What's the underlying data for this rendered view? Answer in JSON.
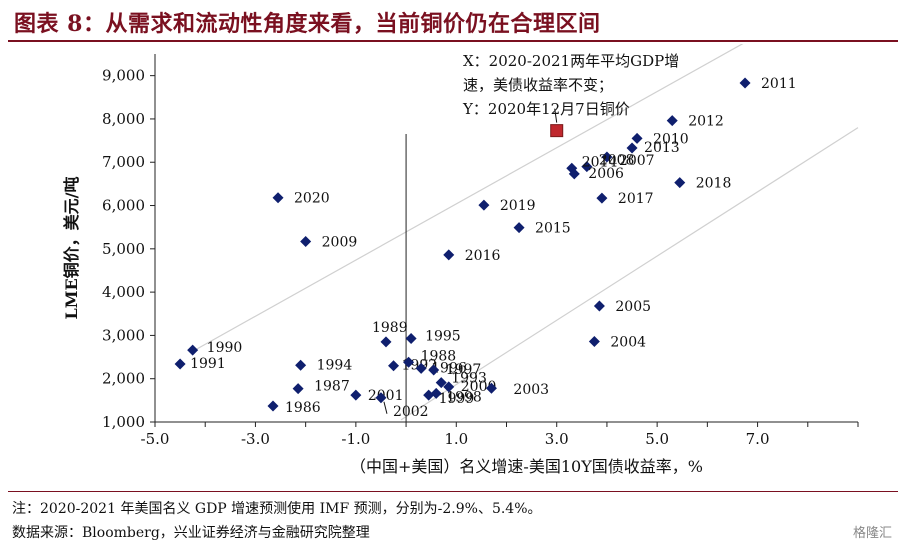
{
  "title": "图表 8：从需求和流动性角度来看，当前铜价仍在合理区间",
  "notes": {
    "line1": "注：2020-2021 年美国名义 GDP 增速预测使用 IMF 预测，分别为-2.9%、5.4%。",
    "line2": "数据来源：Bloomberg，兴业证券经济与金融研究院整理"
  },
  "watermark": "格隆汇",
  "annotation": {
    "lines": [
      "X：2020-2021两年平均GDP增",
      "速，美债收益率不变；",
      "Y：2020年12月7日铜价"
    ]
  },
  "colors": {
    "title": "#7a1020",
    "point": "#0f1f6e",
    "highlight": "#c0282e",
    "axis": "#222222",
    "trend": "#d0d0d0"
  },
  "chart_data": {
    "type": "scatter",
    "xlabel": "（中国+美国）名义增速-美国10Y国债收益率，%",
    "ylabel": "LME铜价，美元/吨",
    "xlim": [
      -5.0,
      9.0
    ],
    "ylim": [
      1000,
      9500
    ],
    "x_ticks": [
      "-5.0",
      "-3.0",
      "-1.0",
      "1.0",
      "3.0",
      "5.0",
      "7.0"
    ],
    "x_tick_values": [
      -5,
      -3,
      -1,
      1,
      3,
      5,
      7
    ],
    "y_ticks": [
      "1,000",
      "2,000",
      "3,000",
      "4,000",
      "5,000",
      "6,000",
      "7,000",
      "8,000",
      "9,000"
    ],
    "y_tick_values": [
      1000,
      2000,
      3000,
      4000,
      5000,
      6000,
      7000,
      8000,
      9000
    ],
    "grid": false,
    "points": [
      {
        "label": "2011",
        "x": 6.75,
        "y": 8830
      },
      {
        "label": "2012",
        "x": 5.3,
        "y": 7960
      },
      {
        "label": "2010",
        "x": 4.6,
        "y": 7550
      },
      {
        "label": "2013",
        "x": 4.5,
        "y": 7330
      },
      {
        "label": "2007",
        "x": 4.0,
        "y": 7120
      },
      {
        "label": "2008",
        "x": 3.6,
        "y": 6900
      },
      {
        "label": "2014",
        "x": 3.3,
        "y": 6860
      },
      {
        "label": "2006",
        "x": 3.35,
        "y": 6730
      },
      {
        "label": "2018",
        "x": 5.45,
        "y": 6530
      },
      {
        "label": "2017",
        "x": 3.9,
        "y": 6170
      },
      {
        "label": "2020",
        "x": -2.55,
        "y": 6180
      },
      {
        "label": "2019",
        "x": 1.55,
        "y": 6010
      },
      {
        "label": "2015",
        "x": 2.25,
        "y": 5490
      },
      {
        "label": "2009",
        "x": -2.0,
        "y": 5170
      },
      {
        "label": "2016",
        "x": 0.85,
        "y": 4860
      },
      {
        "label": "2005",
        "x": 3.85,
        "y": 3680
      },
      {
        "label": "2004",
        "x": 3.75,
        "y": 2860
      },
      {
        "label": "1989",
        "x": -0.4,
        "y": 2850
      },
      {
        "label": "1995",
        "x": 0.1,
        "y": 2930
      },
      {
        "label": "1990",
        "x": -4.25,
        "y": 2660
      },
      {
        "label": "1991",
        "x": -4.5,
        "y": 2340
      },
      {
        "label": "1994",
        "x": -2.1,
        "y": 2310
      },
      {
        "label": "1992",
        "x": -0.25,
        "y": 2300
      },
      {
        "label": "1988",
        "x": 0.05,
        "y": 2380
      },
      {
        "label": "1996",
        "x": 0.3,
        "y": 2240
      },
      {
        "label": "1997",
        "x": 0.55,
        "y": 2200
      },
      {
        "label": "1993",
        "x": 0.7,
        "y": 1910
      },
      {
        "label": "2000",
        "x": 0.85,
        "y": 1810
      },
      {
        "label": "1998",
        "x": 0.6,
        "y": 1660
      },
      {
        "label": "1999",
        "x": 0.45,
        "y": 1620
      },
      {
        "label": "1987",
        "x": -2.15,
        "y": 1770
      },
      {
        "label": "1986",
        "x": -2.65,
        "y": 1370
      },
      {
        "label": "2001",
        "x": -1.0,
        "y": 1620
      },
      {
        "label": "2002",
        "x": -0.5,
        "y": 1560
      },
      {
        "label": "2003",
        "x": 1.7,
        "y": 1780
      }
    ],
    "highlight": {
      "x": 3.0,
      "y": 7730
    },
    "trend_lines": [
      {
        "from": [
          -4.3,
          2600
        ],
        "to": [
          6.8,
          9800
        ]
      },
      {
        "from": [
          -0.1,
          1050
        ],
        "to": [
          9.0,
          7800
        ]
      }
    ]
  }
}
